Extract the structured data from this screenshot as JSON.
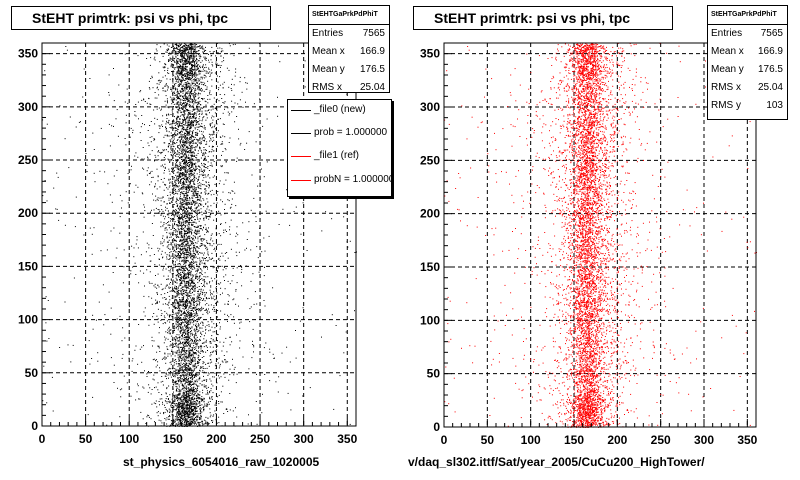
{
  "chart_data": [
    {
      "type": "scatter",
      "title": "StEHT primtrk: psi vs phi, tpc",
      "xlabel": "st_physics_6054016_raw_1020005",
      "ylabel": "",
      "xlim": [
        0,
        360
      ],
      "ylim": [
        0,
        360
      ],
      "xticks": [
        "0",
        "50",
        "100",
        "150",
        "200",
        "250",
        "300",
        "350"
      ],
      "yticks": [
        "0",
        "50",
        "100",
        "150",
        "200",
        "250",
        "300",
        "350"
      ],
      "grid": true,
      "marker_color": "#000000",
      "stats": {
        "title": "StEHTGaPrkPdPhiT",
        "rows": [
          {
            "key": "Entries",
            "value": "7565"
          },
          {
            "key": "Mean x",
            "value": "166.9"
          },
          {
            "key": "Mean y",
            "value": "176.5"
          },
          {
            "key": "RMS x",
            "value": "25.04"
          }
        ]
      },
      "legend": {
        "placement": "top-right",
        "entries": [
          {
            "label": "_file0 (new)",
            "color": "#000000"
          },
          {
            "label": "prob = 1.000000",
            "color": "#000000"
          },
          {
            "label": "_file1 (ref)",
            "color": "#ff0000"
          },
          {
            "label": "probN = 1.000000",
            "color": "#ff0000"
          }
        ]
      }
    },
    {
      "type": "scatter",
      "title": "StEHT primtrk: psi vs phi, tpc",
      "xlabel": "v/daq_sl302.ittf/Sat/year_2005/CuCu200_HighTower/",
      "ylabel": "",
      "xlim": [
        0,
        360
      ],
      "ylim": [
        0,
        360
      ],
      "xticks": [
        "0",
        "50",
        "100",
        "150",
        "200",
        "250",
        "300",
        "350"
      ],
      "yticks": [
        "0",
        "50",
        "100",
        "150",
        "200",
        "250",
        "300",
        "350"
      ],
      "grid": true,
      "marker_color": "#ff0000",
      "stats": {
        "title": "StEHTGaPrkPdPhiT",
        "rows": [
          {
            "key": "Entries",
            "value": "7565"
          },
          {
            "key": "Mean x",
            "value": "166.9"
          },
          {
            "key": "Mean y",
            "value": "176.5"
          },
          {
            "key": "RMS x",
            "value": "25.04"
          },
          {
            "key": "RMS y",
            "value": "103"
          }
        ]
      }
    }
  ]
}
